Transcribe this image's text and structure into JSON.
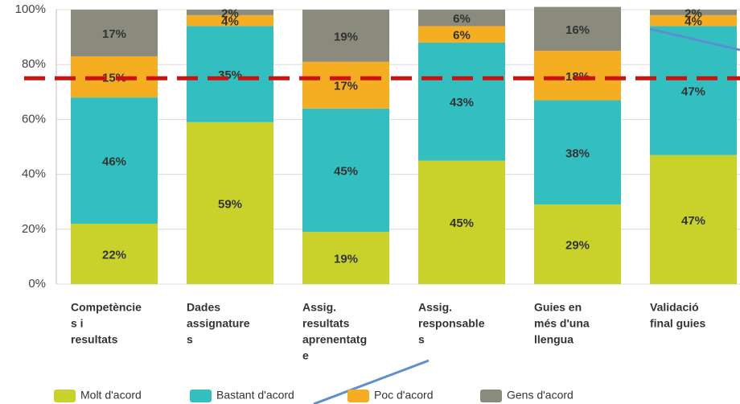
{
  "chart_data": {
    "type": "stacked_bar",
    "categories": [
      [
        "Competèncie",
        "s i",
        "resultats"
      ],
      [
        "Dades",
        "assignature",
        "s"
      ],
      [
        "Assig.",
        "resultats",
        "aprenentatg",
        "e"
      ],
      [
        "Assig.",
        "responsable",
        "s"
      ],
      [
        "Guies en",
        "més d'una",
        "llengua"
      ],
      [
        "Validació",
        "final guies"
      ]
    ],
    "series": [
      {
        "name": "Molt d'acord",
        "color": "#c9d22a",
        "values": [
          22,
          59,
          19,
          45,
          29,
          47
        ],
        "value_labels": [
          "22%",
          "59%",
          "19%",
          "45%",
          "29%",
          "47%"
        ]
      },
      {
        "name": "Bastant d'acord",
        "color": "#33bfbf",
        "values": [
          46,
          35,
          45,
          43,
          38,
          47
        ],
        "value_labels": [
          "46%",
          "35%",
          "45%",
          "43%",
          "38%",
          "47%"
        ]
      },
      {
        "name": "Poc d'acord",
        "color": "#f5ad22",
        "values": [
          15,
          4,
          17,
          6,
          18,
          4
        ],
        "value_labels": [
          "15%",
          "4%",
          "17%",
          "6%",
          "18%",
          "4%"
        ]
      },
      {
        "name": "Gens d'acord",
        "color": "#8b8b7d",
        "values": [
          17,
          2,
          19,
          6,
          16,
          2
        ],
        "value_labels": [
          "17%",
          "2%",
          "19%",
          "6%",
          "16%",
          "2%"
        ]
      }
    ],
    "ylim": [
      0,
      100
    ],
    "yticks": [
      {
        "value": 0,
        "label": "0%"
      },
      {
        "value": 20,
        "label": "20%"
      },
      {
        "value": 40,
        "label": "40%"
      },
      {
        "value": 60,
        "label": "60%"
      },
      {
        "value": 80,
        "label": "80%"
      },
      {
        "value": 100,
        "label": "100%"
      }
    ],
    "grid": true,
    "reference_line": {
      "value": 75,
      "color": "#cc1111"
    },
    "legend": "bottom"
  }
}
